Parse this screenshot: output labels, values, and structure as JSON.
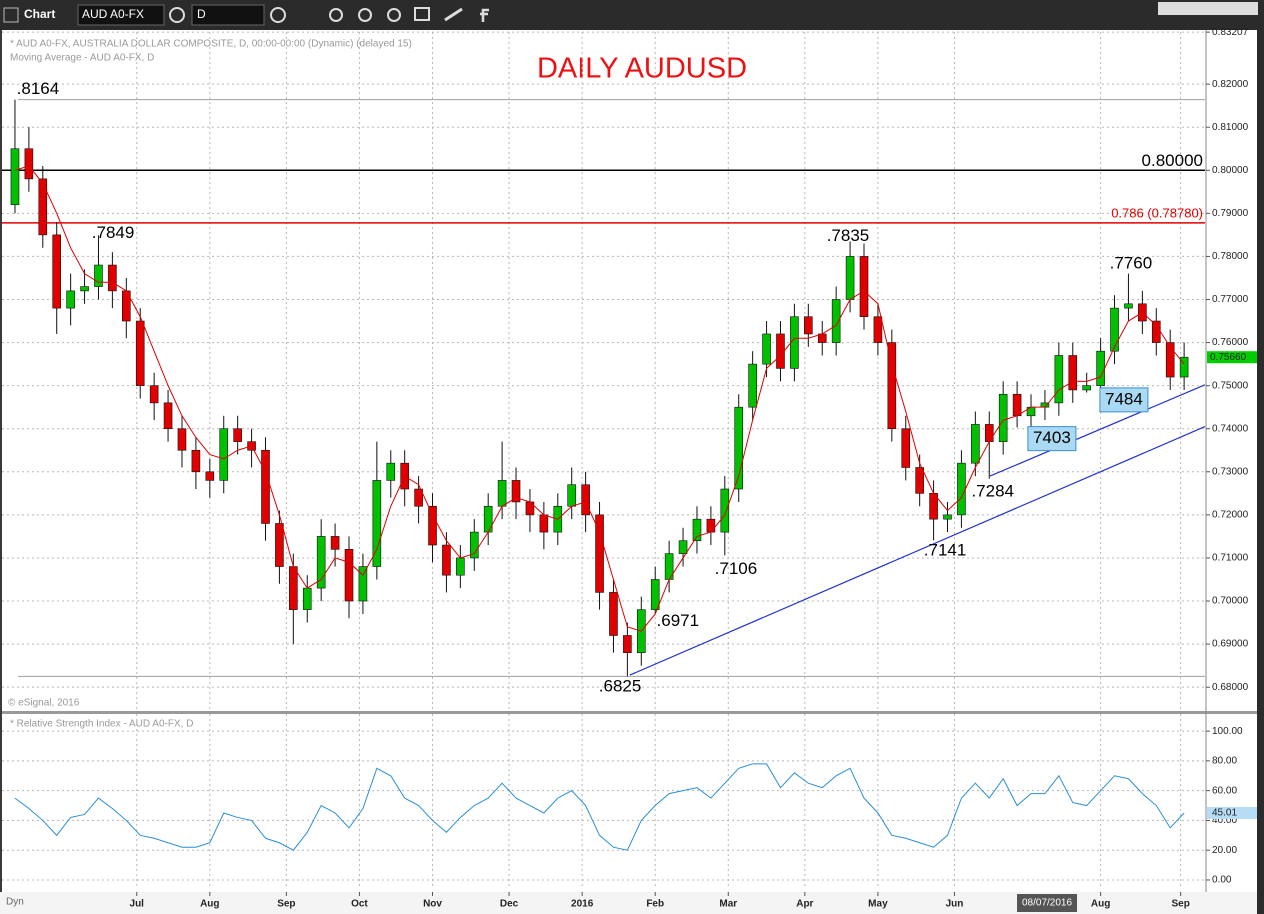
{
  "toolbar": {
    "title": "Chart",
    "symbol": "AUD A0-FX",
    "interval": "D"
  },
  "chart_data": [
    {
      "type": "candlestick",
      "title": "DAILY AUDUSD",
      "header": [
        "* AUD A0-FX, AUSTRALIA DOLLAR COMPOSITE, D, 00:00-00:00 (Dynamic) (delayed 15)",
        "Moving Average - AUD A0-FX, D"
      ],
      "footer": "© eSignal, 2016",
      "xlim": [
        0,
        344
      ],
      "xticks": [
        {
          "value": 37,
          "label": "Jul"
        },
        {
          "value": 58,
          "label": "Aug"
        },
        {
          "value": 80,
          "label": "Sep"
        },
        {
          "value": 101,
          "label": "Oct"
        },
        {
          "value": 122,
          "label": "Nov"
        },
        {
          "value": 144,
          "label": "Dec"
        },
        {
          "value": 165,
          "label": "2016"
        },
        {
          "value": 186,
          "label": "Feb"
        },
        {
          "value": 207,
          "label": "Mar"
        },
        {
          "value": 229,
          "label": "Apr"
        },
        {
          "value": 250,
          "label": "May"
        },
        {
          "value": 272,
          "label": "Jun"
        },
        {
          "value": 314,
          "label": "Aug"
        },
        {
          "value": 337,
          "label": "Sep"
        }
      ],
      "crosshair": {
        "x": 298.6,
        "label": "08/07/2016"
      },
      "ylim": [
        0.6747,
        0.8321
      ],
      "yticks": [
        {
          "value": 0.83207,
          "label": "0.83207"
        },
        {
          "value": 0.82,
          "label": "0.82000"
        },
        {
          "value": 0.81,
          "label": "0.81000"
        },
        {
          "value": 0.8,
          "label": "0.80000"
        },
        {
          "value": 0.79,
          "label": "0.79000"
        },
        {
          "value": 0.78,
          "label": "0.78000"
        },
        {
          "value": 0.77,
          "label": "0.77000"
        },
        {
          "value": 0.76,
          "label": "0.76000"
        },
        {
          "value": 0.75,
          "label": "0.75000"
        },
        {
          "value": 0.74,
          "label": "0.74000"
        },
        {
          "value": 0.73,
          "label": "0.73000"
        },
        {
          "value": 0.72,
          "label": "0.72000"
        },
        {
          "value": 0.71,
          "label": "0.71000"
        },
        {
          "value": 0.7,
          "label": "0.70000"
        },
        {
          "value": 0.69,
          "label": "0.69000"
        },
        {
          "value": 0.68,
          "label": "0.68000"
        }
      ],
      "grid": true,
      "up_color": "#00c000",
      "down_color": "#e00000",
      "ma_color": "#e00000",
      "x": [
        2,
        6,
        10,
        14,
        18,
        22,
        26,
        30,
        34,
        38,
        42,
        46,
        50,
        54,
        58,
        62,
        66,
        70,
        74,
        78,
        82,
        86,
        90,
        94,
        98,
        102,
        106,
        110,
        114,
        118,
        122,
        126,
        130,
        134,
        138,
        142,
        146,
        150,
        154,
        158,
        162,
        166,
        170,
        174,
        178,
        182,
        186,
        190,
        194,
        198,
        202,
        206,
        210,
        214,
        218,
        222,
        226,
        230,
        234,
        238,
        242,
        246,
        250,
        254,
        258,
        262,
        266,
        270,
        274,
        278,
        282,
        286,
        290,
        294,
        298,
        302,
        306,
        310,
        314,
        318,
        322,
        326,
        330,
        334,
        338
      ],
      "candles": [
        [
          0.792,
          0.8164,
          0.79,
          0.805
        ],
        [
          0.805,
          0.81,
          0.795,
          0.798
        ],
        [
          0.798,
          0.801,
          0.782,
          0.785
        ],
        [
          0.785,
          0.788,
          0.762,
          0.768
        ],
        [
          0.768,
          0.776,
          0.764,
          0.772
        ],
        [
          0.772,
          0.777,
          0.769,
          0.773
        ],
        [
          0.773,
          0.7849,
          0.77,
          0.778
        ],
        [
          0.778,
          0.781,
          0.768,
          0.772
        ],
        [
          0.772,
          0.775,
          0.761,
          0.765
        ],
        [
          0.765,
          0.768,
          0.747,
          0.75
        ],
        [
          0.75,
          0.753,
          0.742,
          0.746
        ],
        [
          0.746,
          0.749,
          0.737,
          0.74
        ],
        [
          0.74,
          0.743,
          0.731,
          0.735
        ],
        [
          0.735,
          0.738,
          0.726,
          0.73
        ],
        [
          0.73,
          0.733,
          0.724,
          0.728
        ],
        [
          0.728,
          0.743,
          0.725,
          0.74
        ],
        [
          0.74,
          0.743,
          0.734,
          0.737
        ],
        [
          0.737,
          0.74,
          0.731,
          0.735
        ],
        [
          0.735,
          0.738,
          0.714,
          0.718
        ],
        [
          0.718,
          0.721,
          0.704,
          0.708
        ],
        [
          0.708,
          0.711,
          0.69,
          0.698
        ],
        [
          0.698,
          0.706,
          0.695,
          0.703
        ],
        [
          0.703,
          0.719,
          0.7,
          0.715
        ],
        [
          0.715,
          0.718,
          0.708,
          0.712
        ],
        [
          0.712,
          0.715,
          0.696,
          0.7
        ],
        [
          0.7,
          0.711,
          0.697,
          0.708
        ],
        [
          0.708,
          0.737,
          0.705,
          0.728
        ],
        [
          0.728,
          0.735,
          0.724,
          0.732
        ],
        [
          0.732,
          0.735,
          0.722,
          0.726
        ],
        [
          0.726,
          0.729,
          0.718,
          0.722
        ],
        [
          0.722,
          0.725,
          0.709,
          0.713
        ],
        [
          0.713,
          0.716,
          0.702,
          0.706
        ],
        [
          0.706,
          0.713,
          0.703,
          0.71
        ],
        [
          0.71,
          0.719,
          0.707,
          0.716
        ],
        [
          0.716,
          0.725,
          0.713,
          0.722
        ],
        [
          0.722,
          0.737,
          0.719,
          0.728
        ],
        [
          0.728,
          0.731,
          0.719,
          0.723
        ],
        [
          0.723,
          0.726,
          0.716,
          0.72
        ],
        [
          0.72,
          0.723,
          0.712,
          0.716
        ],
        [
          0.716,
          0.725,
          0.713,
          0.722
        ],
        [
          0.722,
          0.731,
          0.719,
          0.727
        ],
        [
          0.727,
          0.73,
          0.716,
          0.72
        ],
        [
          0.72,
          0.723,
          0.698,
          0.702
        ],
        [
          0.702,
          0.705,
          0.688,
          0.692
        ],
        [
          0.692,
          0.695,
          0.6825,
          0.688
        ],
        [
          0.688,
          0.701,
          0.685,
          0.698
        ],
        [
          0.698,
          0.708,
          0.6971,
          0.705
        ],
        [
          0.705,
          0.714,
          0.702,
          0.711
        ],
        [
          0.711,
          0.717,
          0.708,
          0.714
        ],
        [
          0.714,
          0.722,
          0.711,
          0.719
        ],
        [
          0.719,
          0.722,
          0.713,
          0.716
        ],
        [
          0.716,
          0.729,
          0.7106,
          0.726
        ],
        [
          0.726,
          0.748,
          0.723,
          0.745
        ],
        [
          0.745,
          0.758,
          0.742,
          0.755
        ],
        [
          0.755,
          0.765,
          0.752,
          0.762
        ],
        [
          0.762,
          0.765,
          0.751,
          0.754
        ],
        [
          0.754,
          0.769,
          0.751,
          0.766
        ],
        [
          0.766,
          0.769,
          0.759,
          0.762
        ],
        [
          0.762,
          0.765,
          0.757,
          0.76
        ],
        [
          0.76,
          0.773,
          0.757,
          0.77
        ],
        [
          0.77,
          0.7835,
          0.767,
          0.78
        ],
        [
          0.78,
          0.783,
          0.763,
          0.766
        ],
        [
          0.766,
          0.769,
          0.757,
          0.76
        ],
        [
          0.76,
          0.763,
          0.737,
          0.74
        ],
        [
          0.74,
          0.743,
          0.728,
          0.731
        ],
        [
          0.731,
          0.734,
          0.722,
          0.725
        ],
        [
          0.725,
          0.728,
          0.7141,
          0.719
        ],
        [
          0.719,
          0.723,
          0.716,
          0.72
        ],
        [
          0.72,
          0.735,
          0.717,
          0.732
        ],
        [
          0.732,
          0.744,
          0.729,
          0.741
        ],
        [
          0.741,
          0.744,
          0.7284,
          0.737
        ],
        [
          0.737,
          0.751,
          0.734,
          0.748
        ],
        [
          0.748,
          0.751,
          0.7403,
          0.743
        ],
        [
          0.743,
          0.748,
          0.74,
          0.745
        ],
        [
          0.745,
          0.749,
          0.742,
          0.746
        ],
        [
          0.746,
          0.76,
          0.743,
          0.757
        ],
        [
          0.757,
          0.76,
          0.746,
          0.749
        ],
        [
          0.749,
          0.753,
          0.7484,
          0.75
        ],
        [
          0.75,
          0.761,
          0.749,
          0.758
        ],
        [
          0.758,
          0.771,
          0.755,
          0.768
        ],
        [
          0.768,
          0.776,
          0.765,
          0.769
        ],
        [
          0.769,
          0.772,
          0.762,
          0.765
        ],
        [
          0.765,
          0.768,
          0.757,
          0.76
        ],
        [
          0.76,
          0.763,
          0.749,
          0.752
        ],
        [
          0.752,
          0.76,
          0.749,
          0.7566
        ]
      ],
      "ma": [
        0.8,
        0.801,
        0.797,
        0.79,
        0.782,
        0.776,
        0.774,
        0.774,
        0.772,
        0.766,
        0.758,
        0.75,
        0.743,
        0.738,
        0.734,
        0.733,
        0.735,
        0.736,
        0.73,
        0.72,
        0.708,
        0.703,
        0.705,
        0.71,
        0.709,
        0.706,
        0.712,
        0.722,
        0.729,
        0.727,
        0.72,
        0.714,
        0.71,
        0.711,
        0.716,
        0.722,
        0.724,
        0.723,
        0.72,
        0.719,
        0.722,
        0.723,
        0.716,
        0.705,
        0.694,
        0.693,
        0.697,
        0.705,
        0.71,
        0.715,
        0.716,
        0.72,
        0.729,
        0.742,
        0.754,
        0.757,
        0.761,
        0.761,
        0.762,
        0.764,
        0.77,
        0.772,
        0.769,
        0.755,
        0.744,
        0.732,
        0.725,
        0.721,
        0.724,
        0.731,
        0.737,
        0.742,
        0.743,
        0.745,
        0.745,
        0.749,
        0.751,
        0.751,
        0.752,
        0.759,
        0.765,
        0.767,
        0.764,
        0.759,
        0.755
      ],
      "hlines": [
        {
          "value": 0.8164,
          "color": "#a0a0a0"
        },
        {
          "value": 0.6825,
          "color": "#a0a0a0"
        },
        {
          "value": 0.8,
          "label": "0.80000",
          "color": "#000000"
        },
        {
          "value": 0.7878,
          "label": "0.786 (0.78780)",
          "color": "#e00000"
        }
      ],
      "trendlines": [
        {
          "x": [
            178.7,
            344
          ],
          "y": [
            0.6828,
            0.7405
          ],
          "color": "#2233cc"
        },
        {
          "x": [
            282.2,
            344
          ],
          "y": [
            0.729,
            0.7502
          ],
          "color": "#2233cc"
        }
      ],
      "annotations": [
        {
          "text": ".8164",
          "x": 8.6,
          "y": 0.8188
        },
        {
          "text": ".7849",
          "x": 30.2,
          "y": 0.7853
        },
        {
          "text": ".7835",
          "x": 241.4,
          "y": 0.7846
        },
        {
          "text": ".7760",
          "x": 322.7,
          "y": 0.7782
        },
        {
          "text": ".7106",
          "x": 209.2,
          "y": 0.7073
        },
        {
          "text": ".6971",
          "x": 192.5,
          "y": 0.6952
        },
        {
          "text": ".6825",
          "x": 175.9,
          "y": 0.68
        },
        {
          "text": ".7141",
          "x": 269.3,
          "y": 0.7116
        },
        {
          "text": ".7284",
          "x": 283,
          "y": 0.7253
        }
      ],
      "boxes": [
        {
          "text": "7403",
          "x": 300,
          "y": 0.7377
        },
        {
          "text": "7484",
          "x": 320.7,
          "y": 0.7467
        }
      ],
      "last": {
        "value": 0.7566,
        "label": "0.75660",
        "color": "#00cc00"
      }
    },
    {
      "type": "line",
      "header": "* Relative Strength Index - AUD A0-FX, D",
      "color": "#2a8fd6",
      "ylim": [
        -5.4,
        111.5
      ],
      "yticks": [
        {
          "value": 100,
          "label": "100.00"
        },
        {
          "value": 80,
          "label": "80.00"
        },
        {
          "value": 60,
          "label": "60.00"
        },
        {
          "value": 40,
          "label": "40.00"
        },
        {
          "value": 20,
          "label": "20.00"
        },
        {
          "value": 0,
          "label": "0.00"
        }
      ],
      "x": [
        2,
        6,
        10,
        14,
        18,
        22,
        26,
        30,
        34,
        38,
        42,
        46,
        50,
        54,
        58,
        62,
        66,
        70,
        74,
        78,
        82,
        86,
        90,
        94,
        98,
        102,
        106,
        110,
        114,
        118,
        122,
        126,
        130,
        134,
        138,
        142,
        146,
        150,
        154,
        158,
        162,
        166,
        170,
        174,
        178,
        182,
        186,
        190,
        194,
        198,
        202,
        206,
        210,
        214,
        218,
        222,
        226,
        230,
        234,
        238,
        242,
        246,
        250,
        254,
        258,
        262,
        266,
        270,
        274,
        278,
        282,
        286,
        290,
        294,
        298,
        302,
        306,
        310,
        314,
        318,
        322,
        326,
        330,
        334,
        338
      ],
      "values": [
        55,
        48,
        40,
        30,
        42,
        44,
        55,
        48,
        40,
        30,
        28,
        25,
        22,
        22,
        25,
        45,
        42,
        40,
        28,
        25,
        20,
        32,
        50,
        45,
        35,
        48,
        75,
        70,
        55,
        50,
        40,
        32,
        42,
        50,
        55,
        65,
        55,
        50,
        45,
        55,
        60,
        50,
        30,
        22,
        20,
        40,
        50,
        58,
        60,
        62,
        55,
        65,
        75,
        78,
        78,
        62,
        72,
        65,
        62,
        70,
        75,
        55,
        45,
        30,
        28,
        25,
        22,
        30,
        55,
        65,
        55,
        68,
        50,
        58,
        58,
        70,
        52,
        50,
        60,
        70,
        68,
        58,
        50,
        35,
        45
      ],
      "last": 45.01
    }
  ]
}
